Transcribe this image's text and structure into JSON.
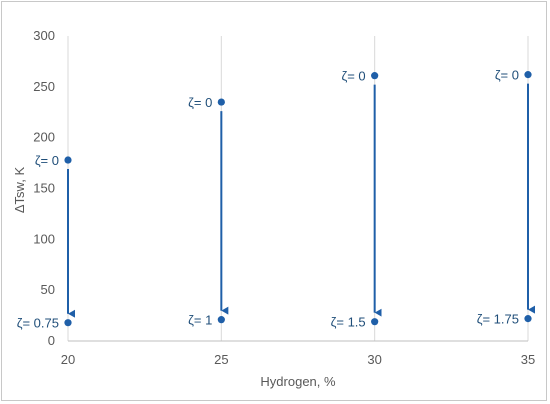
{
  "chart_data": {
    "type": "scatter",
    "xlabel": "Hydrogen, %",
    "ylabel": "ΔTsw, K",
    "xlim": [
      20,
      35
    ],
    "ylim": [
      0,
      300
    ],
    "xticks": [
      "20",
      "25",
      "30",
      "35"
    ],
    "yticks": [
      "0",
      "50",
      "100",
      "150",
      "200",
      "250",
      "300"
    ],
    "grid": "vertical",
    "color": "#1f5fa8",
    "points": [
      {
        "x": 20,
        "y": 178,
        "label": "ζ= 0"
      },
      {
        "x": 20,
        "y": 18,
        "label": "ζ= 0.75"
      },
      {
        "x": 25,
        "y": 235,
        "label": "ζ= 0"
      },
      {
        "x": 25,
        "y": 21,
        "label": "ζ= 1"
      },
      {
        "x": 30,
        "y": 261,
        "label": "ζ= 0"
      },
      {
        "x": 30,
        "y": 19,
        "label": "ζ= 1.5"
      },
      {
        "x": 35,
        "y": 262,
        "label": "ζ= 0"
      },
      {
        "x": 35,
        "y": 22,
        "label": "ζ= 1.75"
      }
    ],
    "arrows": [
      {
        "x": 20,
        "from": 178,
        "to": 18
      },
      {
        "x": 25,
        "from": 235,
        "to": 21
      },
      {
        "x": 30,
        "from": 261,
        "to": 19
      },
      {
        "x": 35,
        "from": 262,
        "to": 22
      }
    ]
  }
}
